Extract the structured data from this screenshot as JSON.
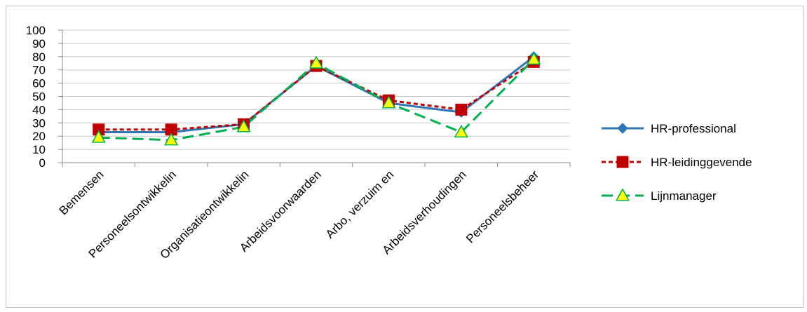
{
  "chart_data": {
    "type": "line",
    "title": "",
    "xlabel": "",
    "ylabel": "",
    "ylim": [
      0,
      100
    ],
    "yticks": [
      0,
      10,
      20,
      30,
      40,
      50,
      60,
      70,
      80,
      90,
      100
    ],
    "categories": [
      "Bemensen",
      "Personeelsontwikkelin",
      "Organisatieontwikkelin",
      "Arbeidsvoorwaarden",
      "Arbo, verzuim en",
      "Arbeidsverhoudingen",
      "Personeelsbeheer"
    ],
    "grid": true,
    "legend_position": "right",
    "series": [
      {
        "name": "HR-professional",
        "color": "#2e75b6",
        "marker": "diamond",
        "line_style": "solid",
        "values": [
          23,
          23,
          29,
          73,
          45,
          38,
          80
        ]
      },
      {
        "name": "HR-leidinggevende",
        "color": "#c00000",
        "marker": "square",
        "line_style": "dotted",
        "values": [
          25,
          25,
          29,
          73,
          47,
          40,
          76
        ]
      },
      {
        "name": "Lijnmanager",
        "color": "#00b050",
        "marker_fill": "#ffff00",
        "marker": "triangle",
        "line_style": "dashed",
        "values": [
          19,
          17,
          27,
          75,
          45,
          23,
          78
        ]
      }
    ]
  }
}
